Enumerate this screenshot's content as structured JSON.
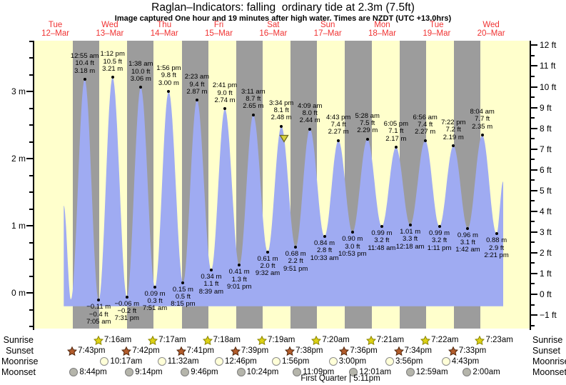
{
  "title": "Raglan–Indicators: falling  ordinary tide at 2.3m (7.5ft)",
  "subtitle": "Image captured One hour and 19 minutes after high water. Times are NZDT (UTC +13.0hrs)",
  "colors": {
    "day_band": "#ffffcc",
    "night_band": "#9c9c9c",
    "tide_fill": "#9fabf2",
    "day_label_red": "#f03232",
    "marker_yellow": "#d9d33c"
  },
  "chart_data": {
    "type": "area",
    "title": "Raglan–Indicators: falling  ordinary tide at 2.3m (7.5ft)",
    "ylabel_left": "metres",
    "ylabel_right": "feet",
    "ylim_m": [
      -0.53,
      3.76
    ],
    "grid": "day-night vertical bands",
    "days": [
      {
        "weekday": "Tue",
        "date": "12–Mar",
        "noon_t": 12
      },
      {
        "weekday": "Wed",
        "date": "13–Mar",
        "noon_t": 36
      },
      {
        "weekday": "Thu",
        "date": "14–Mar",
        "noon_t": 60
      },
      {
        "weekday": "Fri",
        "date": "15–Mar",
        "noon_t": 84
      },
      {
        "weekday": "Sat",
        "date": "16–Mar",
        "noon_t": 108
      },
      {
        "weekday": "Sun",
        "date": "17–Mar",
        "noon_t": 132
      },
      {
        "weekday": "Mon",
        "date": "18–Mar",
        "noon_t": 156
      },
      {
        "weekday": "Tue",
        "date": "19–Mar",
        "noon_t": 180
      },
      {
        "weekday": "Wed",
        "date": "20–Mar",
        "noon_t": 204
      }
    ],
    "y_axis_left_labels": [
      {
        "v": 3,
        "label": "3 m"
      },
      {
        "v": 2,
        "label": "2 m"
      },
      {
        "v": 1,
        "label": "1 m"
      },
      {
        "v": 0,
        "label": "0 m"
      }
    ],
    "y_axis_right_labels": [
      {
        "v": 12,
        "label": "12 ft"
      },
      {
        "v": 11,
        "label": "11 ft"
      },
      {
        "v": 10,
        "label": "10 ft"
      },
      {
        "v": 9,
        "label": "9 ft"
      },
      {
        "v": 8,
        "label": "8 ft"
      },
      {
        "v": 7,
        "label": "7 ft"
      },
      {
        "v": 6,
        "label": "6 ft"
      },
      {
        "v": 5,
        "label": "5 ft"
      },
      {
        "v": 4,
        "label": "4 ft"
      },
      {
        "v": 3,
        "label": "3 ft"
      },
      {
        "v": 2,
        "label": "2 ft"
      },
      {
        "v": 1,
        "label": "1 ft"
      },
      {
        "v": 0,
        "label": "0 ft"
      },
      {
        "v": -1,
        "label": "−1 ft"
      }
    ],
    "tide_extremes": [
      {
        "t": 15.7,
        "m": 1.3,
        "type": "edge"
      },
      {
        "t": 18.83,
        "m": -0.1,
        "type": "low",
        "labeled": false
      },
      {
        "t": 24.917,
        "m": 3.18,
        "type": "high",
        "time_label": "12:55 am",
        "ft_label": "10.4 ft",
        "m_label": "3.18 m"
      },
      {
        "t": 31.083,
        "m": -0.11,
        "type": "low",
        "time_label": "7:05 am",
        "ft_label": "−0.4 ft",
        "m_label": "−0.11 m"
      },
      {
        "t": 37.2,
        "m": 3.21,
        "type": "high",
        "time_label": "1:12 pm",
        "ft_label": "10.5 ft",
        "m_label": "3.21 m"
      },
      {
        "t": 43.517,
        "m": -0.06,
        "type": "low",
        "time_label": "7:31 pm",
        "ft_label": "−0.2 ft",
        "m_label": "−0.06 m"
      },
      {
        "t": 49.633,
        "m": 3.06,
        "type": "high",
        "time_label": "1:38 am",
        "ft_label": "10.0 ft",
        "m_label": "3.06 m"
      },
      {
        "t": 55.85,
        "m": 0.09,
        "type": "low",
        "time_label": "7:51 am",
        "ft_label": "0.3 ft",
        "m_label": "0.09 m"
      },
      {
        "t": 61.933,
        "m": 3.0,
        "type": "high",
        "time_label": "1:56 pm",
        "ft_label": "9.8 ft",
        "m_label": "3.00 m"
      },
      {
        "t": 68.25,
        "m": 0.15,
        "type": "low",
        "time_label": "8:15 pm",
        "ft_label": "0.5 ft",
        "m_label": "0.15 m"
      },
      {
        "t": 74.383,
        "m": 2.87,
        "type": "high",
        "time_label": "2:23 am",
        "ft_label": "9.4 ft",
        "m_label": "2.87 m"
      },
      {
        "t": 80.65,
        "m": 0.34,
        "type": "low",
        "time_label": "8:39 am",
        "ft_label": "1.1 ft",
        "m_label": "0.34 m"
      },
      {
        "t": 86.683,
        "m": 2.74,
        "type": "high",
        "time_label": "2:41 pm",
        "ft_label": "9.0 ft",
        "m_label": "2.74 m"
      },
      {
        "t": 93.017,
        "m": 0.41,
        "type": "low",
        "time_label": "9:01 pm",
        "ft_label": "1.3 ft",
        "m_label": "0.41 m"
      },
      {
        "t": 99.183,
        "m": 2.65,
        "type": "high",
        "time_label": "3:11 am",
        "ft_label": "8.7 ft",
        "m_label": "2.65 m"
      },
      {
        "t": 105.533,
        "m": 0.61,
        "type": "low",
        "time_label": "9:32 am",
        "ft_label": "2.0 ft",
        "m_label": "0.61 m"
      },
      {
        "t": 111.567,
        "m": 2.48,
        "type": "high",
        "time_label": "3:34 pm",
        "ft_label": "8.1 ft",
        "m_label": "2.48 m"
      },
      {
        "t": 117.85,
        "m": 0.68,
        "type": "low",
        "time_label": "9:51 pm",
        "ft_label": "2.2 ft",
        "m_label": "0.68 m"
      },
      {
        "t": 124.15,
        "m": 2.44,
        "type": "high",
        "time_label": "4:09 am",
        "ft_label": "8.0 ft",
        "m_label": "2.44 m"
      },
      {
        "t": 130.55,
        "m": 0.84,
        "type": "low",
        "time_label": "10:33 am",
        "ft_label": "2.8 ft",
        "m_label": "0.84 m"
      },
      {
        "t": 136.717,
        "m": 2.27,
        "type": "high",
        "time_label": "4:43 pm",
        "ft_label": "7.4 ft",
        "m_label": "2.27 m"
      },
      {
        "t": 142.883,
        "m": 0.9,
        "type": "low",
        "time_label": "10:53 pm",
        "ft_label": "3.0 ft",
        "m_label": "0.90 m"
      },
      {
        "t": 149.467,
        "m": 2.29,
        "type": "high",
        "time_label": "5:28 am",
        "ft_label": "7.5 ft",
        "m_label": "2.29 m"
      },
      {
        "t": 155.8,
        "m": 0.99,
        "type": "low",
        "time_label": "11:48 am",
        "ft_label": "3.2 ft",
        "m_label": "0.99 m"
      },
      {
        "t": 162.083,
        "m": 2.17,
        "type": "high",
        "time_label": "6:05 pm",
        "ft_label": "7.1 ft",
        "m_label": "2.17 m"
      },
      {
        "t": 168.3,
        "m": 1.01,
        "type": "low",
        "time_label": "12:18 am",
        "ft_label": "3.3 ft",
        "m_label": "1.01 m"
      },
      {
        "t": 174.933,
        "m": 2.27,
        "type": "high",
        "time_label": "6:56 am",
        "ft_label": "7.4 ft",
        "m_label": "2.27 m"
      },
      {
        "t": 181.183,
        "m": 0.99,
        "type": "low",
        "time_label": "1:11 pm",
        "ft_label": "3.2 ft",
        "m_label": "0.99 m"
      },
      {
        "t": 187.367,
        "m": 2.19,
        "type": "high",
        "time_label": "7:22 pm",
        "ft_label": "7.2 ft",
        "m_label": "2.19 m"
      },
      {
        "t": 193.7,
        "m": 0.96,
        "type": "low",
        "time_label": "1:42 am",
        "ft_label": "3.1 ft",
        "m_label": "0.96 m"
      },
      {
        "t": 200.067,
        "m": 2.35,
        "type": "high",
        "time_label": "8:04 am",
        "ft_label": "7.7 ft",
        "m_label": "2.35 m"
      },
      {
        "t": 206.35,
        "m": 0.88,
        "type": "low",
        "time_label": "2:21 pm",
        "ft_label": "2.9 ft",
        "m_label": "0.88 m"
      },
      {
        "t": 209.3,
        "m": 1.66,
        "type": "edge"
      }
    ],
    "current_marker": {
      "t": 112.88,
      "m": 2.3
    },
    "astro": {
      "row_labels": [
        "Sunrise",
        "Sunset",
        "Moonrise",
        "Moonset"
      ],
      "sunrise": [
        {
          "t": 31.267,
          "label": "7:16am"
        },
        {
          "t": 55.283,
          "label": "7:17am"
        },
        {
          "t": 79.3,
          "label": "7:18am"
        },
        {
          "t": 103.317,
          "label": "7:19am"
        },
        {
          "t": 127.333,
          "label": "7:20am"
        },
        {
          "t": 151.35,
          "label": "7:21am"
        },
        {
          "t": 175.367,
          "label": "7:22am"
        },
        {
          "t": 199.383,
          "label": "7:23am"
        }
      ],
      "sunset": [
        {
          "t": 19.717,
          "label": "7:43pm"
        },
        {
          "t": 43.7,
          "label": "7:42pm"
        },
        {
          "t": 67.683,
          "label": "7:41pm"
        },
        {
          "t": 91.65,
          "label": "7:39pm"
        },
        {
          "t": 115.633,
          "label": "7:38pm"
        },
        {
          "t": 139.6,
          "label": "7:36pm"
        },
        {
          "t": 163.567,
          "label": "7:34pm"
        },
        {
          "t": 187.55,
          "label": "7:33pm"
        }
      ],
      "moonrise": [
        {
          "t": 34.283,
          "label": "10:17am"
        },
        {
          "t": 59.533,
          "label": "11:32am"
        },
        {
          "t": 84.767,
          "label": "12:46pm"
        },
        {
          "t": 109.933,
          "label": "1:56pm"
        },
        {
          "t": 135.0,
          "label": "3:00pm"
        },
        {
          "t": 159.933,
          "label": "3:56pm"
        },
        {
          "t": 184.717,
          "label": "4:43pm"
        }
      ],
      "moonset": [
        {
          "t": 20.733,
          "label": "8:44pm"
        },
        {
          "t": 45.233,
          "label": "9:14pm"
        },
        {
          "t": 69.767,
          "label": "9:46pm"
        },
        {
          "t": 94.4,
          "label": "10:24pm"
        },
        {
          "t": 119.15,
          "label": "11:09pm"
        },
        {
          "t": 144.017,
          "label": "12:01am"
        },
        {
          "t": 168.983,
          "label": "12:59am"
        },
        {
          "t": 194.0,
          "label": "2:00am"
        }
      ],
      "moon_phase": {
        "label": "First Quarter | 5:11pm",
        "t": 113.183
      }
    }
  }
}
